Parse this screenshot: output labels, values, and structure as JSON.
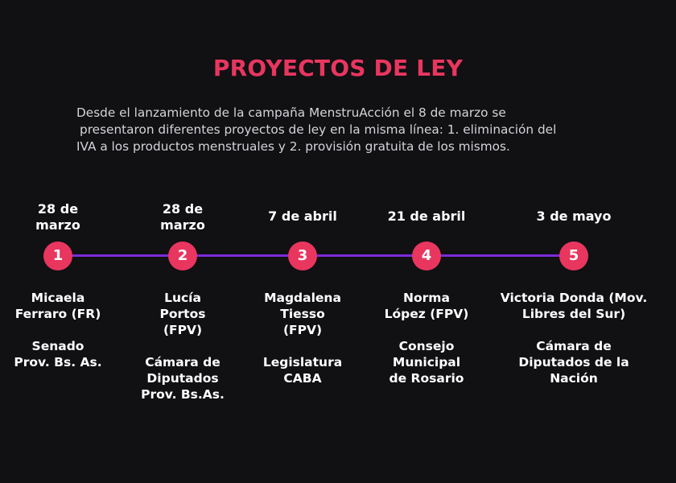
{
  "title": "PROYECTOS DE LEY",
  "intro": {
    "line1": "Desde el lanzamiento de la campaña MenstruAcción el 8 de marzo se",
    "line2": "presentaron diferentes proyectos de ley en la misma línea: 1. eliminación del",
    "line3": "IVA a los productos menstruales y 2. provisión gratuita de los mismos."
  },
  "colors": {
    "accent": "#e8365f",
    "timeline": "#7b2bd9",
    "background": "#111013"
  },
  "timeline": [
    {
      "number": "1",
      "date": "28 de\nmarzo",
      "person": "Micaela\nFerraro (FR)",
      "body": "Senado\nProv. Bs. As."
    },
    {
      "number": "2",
      "date": "28 de\nmarzo",
      "person": "Lucía\nPortos\n(FPV)",
      "body": "Cámara de\nDiputados\nProv. Bs.As."
    },
    {
      "number": "3",
      "date": "7 de abril",
      "person": "Magdalena\nTiesso\n(FPV)",
      "body": "Legislatura\nCABA"
    },
    {
      "number": "4",
      "date": "21 de abril",
      "person": "Norma\nLópez (FPV)",
      "body": "Consejo\nMunicipal\nde Rosario"
    },
    {
      "number": "5",
      "date": "3 de mayo",
      "person": "Victoria Donda (Mov.\nLibres del Sur)",
      "body": "Cámara de\nDiputados de la\nNación"
    }
  ]
}
